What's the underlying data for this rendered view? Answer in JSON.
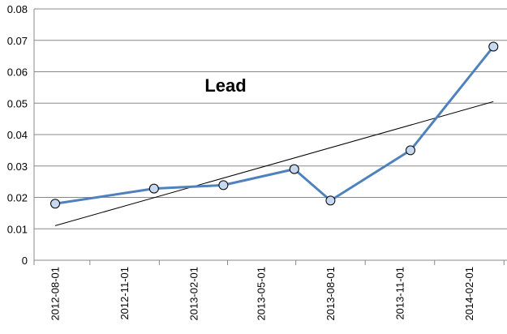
{
  "chart_data": {
    "type": "line",
    "title": "Lead",
    "xlabel": "",
    "ylabel": "",
    "x_ticks": [
      "2012-08-01",
      "2012-11-01",
      "2013-02-01",
      "2013-05-01",
      "2013-08-01",
      "2013-11-01",
      "2014-02-01"
    ],
    "y_ticks": [
      "0",
      "0.01",
      "0.02",
      "0.03",
      "0.04",
      "0.05",
      "0.06",
      "0.07",
      "0.08"
    ],
    "xlim": [
      "2012-07-04",
      "2014-03-23"
    ],
    "ylim": [
      0,
      0.08
    ],
    "grid": "horizontal",
    "legend": "none",
    "series": [
      {
        "color": "#4f81bd",
        "marker_fill": "#c6d9f1",
        "points": [
          {
            "x": "2012-08-01",
            "y": 0.018
          },
          {
            "x": "2012-12-10",
            "y": 0.0228
          },
          {
            "x": "2013-03-12",
            "y": 0.0239
          },
          {
            "x": "2013-06-14",
            "y": 0.029
          },
          {
            "x": "2013-08-01",
            "y": 0.019
          },
          {
            "x": "2013-11-15",
            "y": 0.035
          },
          {
            "x": "2014-03-05",
            "y": 0.068
          }
        ]
      }
    ],
    "trendline": {
      "type": "linear",
      "color": "#000000",
      "start": {
        "x": "2012-08-01",
        "y": 0.011
      },
      "end": {
        "x": "2014-03-05",
        "y": 0.0505
      }
    }
  }
}
